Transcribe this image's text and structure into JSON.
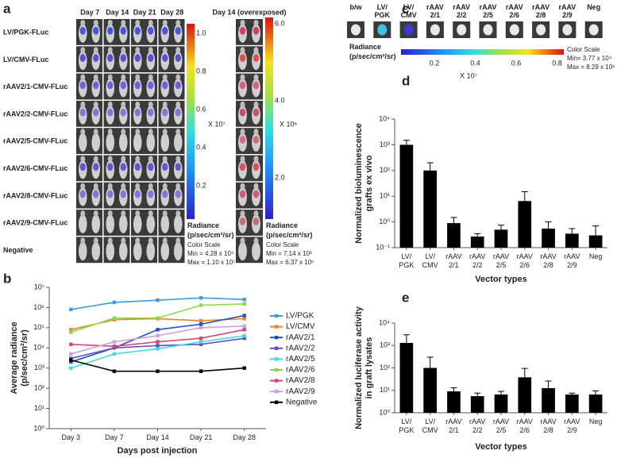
{
  "panel_labels": [
    "a",
    "b",
    "c",
    "d",
    "e"
  ],
  "panel_a": {
    "columns": [
      "Day 7",
      "Day 14",
      "Day 21",
      "Day 28",
      "Day 14 (overexposed)"
    ],
    "rows": [
      "LV/PGK-FLuc",
      "LV/CMV-FLuc",
      "rAAV2/1-CMV-FLuc",
      "rAAV2/2-CMV-FLuc",
      "rAAV2/5-CMV-FLuc",
      "rAAV2/6-CMV-FLuc",
      "rAAV2/8-CMV-FLuc",
      "rAAV2/9-CMV-FLuc",
      "Negative"
    ],
    "colorbars": [
      {
        "ticks": [
          "1.0",
          "0.8",
          "0.6",
          "0.4",
          "0.2"
        ],
        "multiplier": "X 10⁷",
        "unit_label": "Radiance\n(p/sec/cm²/sr)",
        "scale_title": "Color Scale",
        "min": "Min = 4.28 x 10⁴",
        "max": "Max = 1.10 x 10⁷"
      },
      {
        "ticks": [
          "6.0",
          "4.0",
          "2.0"
        ],
        "multiplier": "X 10⁶",
        "unit_label": "Radiance\n(p/sec/cm²/sr)",
        "scale_title": "Color Scale",
        "min": "Min = 7.14 x 10³",
        "max": "Max = 6.37 x 10⁶"
      }
    ]
  },
  "panel_c": {
    "columns": [
      "b/w",
      "LV/\nPGK",
      "LV/\nCMV",
      "rAAV\n2/1",
      "rAAV\n2/2",
      "rAAV\n2/5",
      "rAAV\n2/6",
      "rAAV\n2/8",
      "rAAV\n2/9",
      "Neg"
    ],
    "unit_label": "Radiance\n(p/sec/cm²/sr)",
    "ticks": [
      "0.2",
      "0.4",
      "0.6",
      "0.8"
    ],
    "multiplier": "X 10⁷",
    "scale_title": "Color Scale",
    "min": "Min= 3.77 x 10⁴",
    "max": "Max = 8.29 x 10⁶"
  },
  "chart_data": [
    {
      "type": "line",
      "x_label": "Days post injection",
      "y_label": "Average radiance\n(p/sec/cm²/sr)",
      "log_scale": true,
      "categories": [
        "Day 3",
        "Day 7",
        "Day 14",
        "Day 21",
        "Day 28"
      ],
      "ylim": [
        1,
        10000000
      ],
      "yticks": [
        {
          "value": 1,
          "label": "10⁰"
        },
        {
          "value": 10,
          "label": "10¹"
        },
        {
          "value": 100,
          "label": "10²"
        },
        {
          "value": 1000,
          "label": "10³"
        },
        {
          "value": 10000,
          "label": "10⁴"
        },
        {
          "value": 100000,
          "label": "10⁵"
        },
        {
          "value": 1000000,
          "label": "10⁶"
        },
        {
          "value": 10000000,
          "label": "10⁷"
        }
      ],
      "series": [
        {
          "name": "LV/PGK",
          "color": "#3b9be0",
          "values": [
            800000,
            1800000,
            2300000,
            3000000,
            2500000
          ]
        },
        {
          "name": "LV/CMV",
          "color": "#e8842c",
          "values": [
            80000,
            250000,
            280000,
            220000,
            280000
          ]
        },
        {
          "name": "rAAV2/1",
          "color": "#2352c8",
          "values": [
            2000,
            10000,
            80000,
            150000,
            400000
          ]
        },
        {
          "name": "rAAV2/2",
          "color": "#5c50cf",
          "values": [
            3000,
            10000,
            13000,
            15000,
            30000
          ]
        },
        {
          "name": "rAAV2/5",
          "color": "#45d8e2",
          "values": [
            1000,
            5000,
            9000,
            20000,
            40000
          ]
        },
        {
          "name": "rAAV2/6",
          "color": "#8fd64a",
          "values": [
            60000,
            300000,
            300000,
            1300000,
            1500000
          ]
        },
        {
          "name": "rAAV2/8",
          "color": "#d9456c",
          "values": [
            15000,
            12000,
            20000,
            30000,
            80000
          ]
        },
        {
          "name": "rAAV2/9",
          "color": "#c9a0e8",
          "values": [
            5000,
            20000,
            40000,
            100000,
            120000
          ]
        },
        {
          "name": "Negative",
          "color": "#000000",
          "values": [
            2500,
            700,
            700,
            700,
            1000
          ]
        }
      ]
    },
    {
      "type": "bar",
      "x_label": "Vector types",
      "y_label": "Normalized bioluminescence\ngrafts ex vivo",
      "log_scale": true,
      "color": "#000000",
      "categories": [
        "LV/\nPGK",
        "LV/\nCMV",
        "rAAV\n2/1",
        "rAAV\n2/2",
        "rAAV\n2/5",
        "rAAV\n2/6",
        "rAAV\n2/8",
        "rAAV\n2/9",
        "Neg"
      ],
      "values": [
        1000,
        100,
        0.9,
        0.27,
        0.5,
        6.5,
        0.55,
        0.35,
        0.3
      ],
      "errors": [
        500,
        100,
        0.6,
        0.08,
        0.25,
        8.5,
        0.45,
        0.2,
        0.4
      ],
      "ylim": [
        0.1,
        10000
      ],
      "yticks": [
        {
          "value": 0.1,
          "label": "10⁻¹"
        },
        {
          "value": 1,
          "label": "10⁰"
        },
        {
          "value": 10,
          "label": "10¹"
        },
        {
          "value": 100,
          "label": "10²"
        },
        {
          "value": 1000,
          "label": "10³"
        },
        {
          "value": 10000,
          "label": "10⁴"
        }
      ]
    },
    {
      "type": "bar",
      "x_label": "Vector types",
      "y_label": "Normalized luciferase activity\nin graft lysates",
      "log_scale": true,
      "color": "#000000",
      "categories": [
        "LV/\nPGK",
        "LV/\nCMV",
        "rAAV\n2/1",
        "rAAV\n2/2",
        "rAAV\n2/5",
        "rAAV\n2/6",
        "rAAV\n2/8",
        "rAAV\n2/9",
        "Neg"
      ],
      "values": [
        1300,
        100,
        9,
        5.5,
        6.5,
        38,
        12.5,
        6.5,
        6.5
      ],
      "errors": [
        1700,
        200,
        4,
        2,
        2.5,
        57,
        13.5,
        1,
        3
      ],
      "ylim": [
        1,
        10000
      ],
      "yticks": [
        {
          "value": 1,
          "label": "10⁰"
        },
        {
          "value": 10,
          "label": "10¹"
        },
        {
          "value": 100,
          "label": "10²"
        },
        {
          "value": 1000,
          "label": "10³"
        },
        {
          "value": 10000,
          "label": "10⁴"
        }
      ]
    }
  ]
}
